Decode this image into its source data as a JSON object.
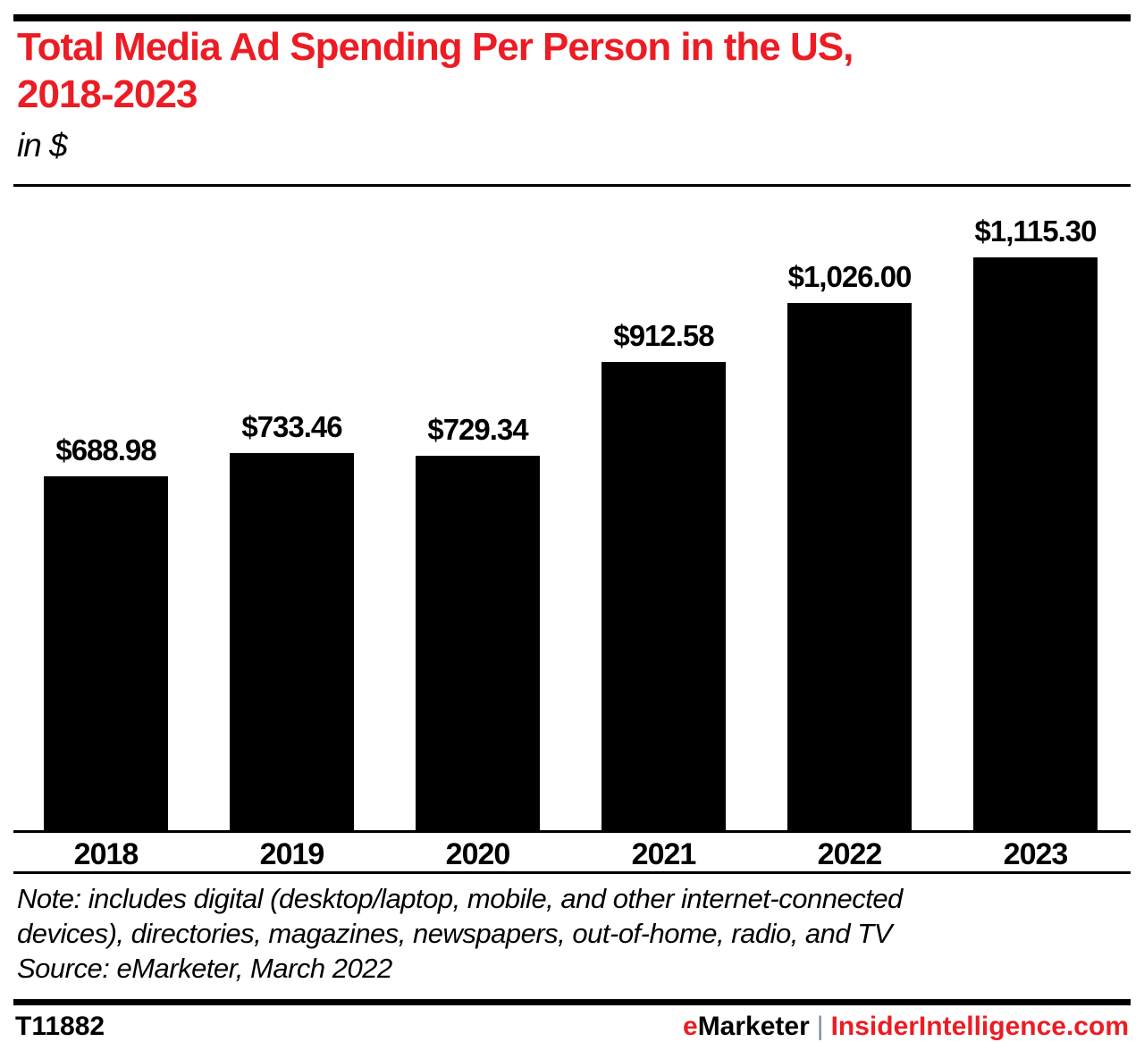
{
  "colors": {
    "accent_red": "#EC1C24",
    "bar_color": "#000000",
    "separator_gray": "#7d8fa0"
  },
  "header": {
    "title_line1": "Total Media Ad Spending Per Person in the US,",
    "title_line2": "2018-2023",
    "subtitle": "in $"
  },
  "chart_data": {
    "type": "bar",
    "title": "Total Media Ad Spending Per Person in the US, 2018-2023",
    "subtitle": "in $",
    "categories": [
      "2018",
      "2019",
      "2020",
      "2021",
      "2022",
      "2023"
    ],
    "values": [
      688.98,
      733.46,
      729.34,
      912.58,
      1026.0,
      1115.3
    ],
    "data_labels": [
      "$688.98",
      "$733.46",
      "$729.34",
      "$912.58",
      "$1,026.00",
      "$1,115.30"
    ],
    "xlabel": "",
    "ylabel": "in $",
    "ylim": [
      0,
      1115.3
    ],
    "grid": false,
    "legend": "none",
    "bar_color": "#000000",
    "label_position": "above-bars"
  },
  "note": {
    "line1": "Note: includes digital (desktop/laptop, mobile, and other internet-connected",
    "line2": "devices), directories, magazines, newspapers, out-of-home, radio, and TV",
    "source": "Source: eMarketer, March 2022"
  },
  "footer": {
    "chart_id": "T11882",
    "brand_e": "e",
    "brand_rest": "Marketer",
    "separator": "|",
    "site": "InsiderIntelligence.com"
  }
}
